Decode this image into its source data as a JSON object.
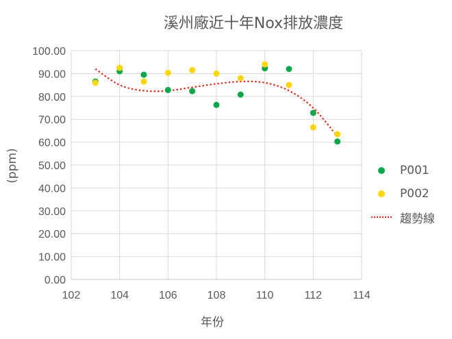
{
  "chart_data": {
    "type": "scatter",
    "title": "溪州廠近十年Nox排放濃度",
    "xlabel": "年份",
    "ylabel": "(ppm)",
    "xlim": [
      102,
      114
    ],
    "ylim": [
      0,
      100
    ],
    "x_ticks": [
      "102",
      "104",
      "106",
      "108",
      "110",
      "112",
      "114"
    ],
    "y_ticks": [
      "0.00",
      "10.00",
      "20.00",
      "30.00",
      "40.00",
      "50.00",
      "60.00",
      "70.00",
      "80.00",
      "90.00",
      "100.00"
    ],
    "grid": true,
    "legend_position": "right",
    "series": [
      {
        "name": "P001",
        "color": "#0aa84a",
        "x": [
          103,
          104,
          105,
          106,
          107,
          108,
          109,
          110,
          111,
          112,
          113
        ],
        "y": [
          86.5,
          91.0,
          89.5,
          82.8,
          82.3,
          76.3,
          80.8,
          92.3,
          92.0,
          72.8,
          60.3
        ]
      },
      {
        "name": "P002",
        "color": "#ffd700",
        "x": [
          103,
          104,
          105,
          106,
          107,
          108,
          109,
          110,
          111,
          112,
          113
        ],
        "y": [
          86.0,
          92.5,
          86.5,
          90.3,
          91.5,
          90.0,
          88.0,
          94.0,
          85.0,
          66.5,
          63.5
        ]
      }
    ],
    "trendline": {
      "name": "趨勢線",
      "color": "#e8281f",
      "style": "dotted",
      "x": [
        103,
        104,
        105,
        106,
        107,
        108,
        109,
        110,
        111,
        112,
        113
      ],
      "y": [
        92.0,
        85.0,
        82.5,
        82.5,
        84.0,
        85.5,
        86.5,
        86.0,
        82.5,
        75.0,
        62.5
      ]
    }
  }
}
